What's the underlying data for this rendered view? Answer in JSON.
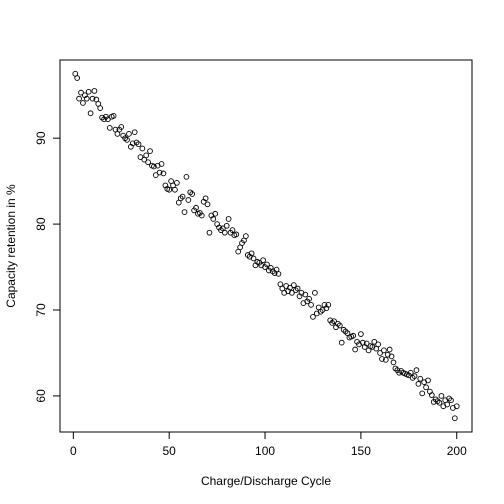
{
  "chart_data": {
    "type": "scatter",
    "xlabel": "Charge/Discharge Cycle",
    "ylabel": "Capacity retention in %",
    "x": [
      1,
      2,
      3,
      4,
      5,
      6,
      7,
      8,
      9,
      10,
      11,
      12,
      13,
      14,
      15,
      16,
      17,
      18,
      19,
      20,
      21,
      22,
      23,
      24,
      25,
      26,
      27,
      28,
      29,
      30,
      31,
      32,
      33,
      34,
      35,
      36,
      37,
      38,
      39,
      40,
      41,
      42,
      43,
      44,
      45,
      46,
      47,
      48,
      49,
      50,
      51,
      52,
      53,
      54,
      55,
      56,
      57,
      58,
      59,
      60,
      61,
      62,
      63,
      64,
      65,
      66,
      67,
      68,
      69,
      70,
      71,
      72,
      73,
      74,
      75,
      76,
      77,
      78,
      79,
      80,
      81,
      82,
      83,
      84,
      85,
      86,
      87,
      88,
      89,
      90,
      91,
      92,
      93,
      94,
      95,
      96,
      97,
      98,
      99,
      100,
      101,
      102,
      103,
      104,
      105,
      106,
      107,
      108,
      109,
      110,
      111,
      112,
      113,
      114,
      115,
      116,
      117,
      118,
      119,
      120,
      121,
      122,
      123,
      124,
      125,
      126,
      127,
      128,
      129,
      130,
      131,
      132,
      133,
      134,
      135,
      136,
      137,
      138,
      139,
      140,
      141,
      142,
      143,
      144,
      145,
      146,
      147,
      148,
      149,
      150,
      151,
      152,
      153,
      154,
      155,
      156,
      157,
      158,
      159,
      160,
      161,
      162,
      163,
      164,
      165,
      166,
      167,
      168,
      169,
      170,
      171,
      172,
      173,
      174,
      175,
      176,
      177,
      178,
      179,
      180,
      181,
      182,
      183,
      184,
      185,
      186,
      187,
      188,
      189,
      190,
      191,
      192,
      193,
      194,
      195,
      196,
      197,
      198,
      199,
      200
    ],
    "values": [
      97.5,
      97.0,
      94.6,
      95.3,
      94.1,
      95.0,
      94.6,
      95.4,
      92.9,
      94.6,
      95.5,
      94.5,
      94.0,
      93.5,
      92.4,
      92.2,
      92.5,
      92.2,
      91.2,
      92.5,
      92.6,
      91.0,
      90.5,
      91.0,
      91.3,
      90.3,
      90.0,
      89.8,
      90.5,
      89.0,
      89.4,
      90.7,
      89.5,
      89.3,
      87.8,
      88.8,
      87.5,
      88.0,
      87.2,
      88.5,
      86.8,
      86.7,
      85.7,
      86.8,
      86.0,
      87.0,
      85.9,
      84.5,
      84.1,
      84.0,
      85.0,
      84.5,
      84.0,
      84.8,
      82.5,
      83.0,
      83.2,
      81.4,
      85.5,
      82.8,
      83.7,
      83.5,
      81.6,
      81.9,
      81.2,
      81.3,
      81.0,
      82.6,
      83.0,
      82.3,
      79.0,
      81.0,
      80.6,
      81.2,
      80.0,
      79.6,
      79.3,
      79.5,
      79.0,
      79.8,
      80.6,
      79.0,
      79.3,
      78.7,
      78.8,
      76.8,
      77.3,
      77.8,
      78.1,
      78.6,
      76.4,
      76.2,
      76.6,
      76.0,
      75.2,
      75.6,
      75.5,
      75.2,
      75.8,
      75.0,
      75.3,
      74.6,
      74.9,
      74.5,
      74.3,
      74.7,
      74.2,
      73.0,
      72.5,
      72.0,
      72.8,
      72.2,
      72.6,
      72.0,
      72.9,
      72.3,
      72.5,
      71.6,
      72.0,
      70.8,
      71.8,
      71.0,
      71.3,
      70.6,
      69.2,
      72.0,
      69.6,
      70.3,
      69.8,
      70.0,
      70.6,
      70.2,
      70.6,
      68.8,
      68.5,
      68.7,
      68.0,
      68.4,
      68.2,
      66.2,
      67.7,
      67.5,
      67.3,
      66.8,
      66.9,
      67.0,
      65.4,
      66.3,
      66.0,
      67.2,
      66.2,
      65.7,
      66.1,
      65.3,
      65.8,
      65.7,
      66.3,
      65.5,
      66.0,
      65.0,
      64.3,
      65.3,
      64.2,
      64.8,
      65.4,
      64.6,
      63.9,
      63.2,
      63.0,
      62.7,
      62.9,
      62.7,
      62.6,
      62.5,
      62.4,
      62.7,
      62.1,
      62.3,
      63.0,
      61.4,
      62.0,
      60.3,
      61.6,
      61.0,
      61.8,
      60.5,
      60.1,
      59.3,
      59.6,
      59.4,
      59.2,
      60.0,
      58.8,
      59.5,
      59.0,
      59.7,
      59.5,
      58.6,
      57.4,
      58.8
    ],
    "color": "#000000",
    "xlim": [
      -6.96,
      207.96
    ],
    "xticks": [
      0,
      50,
      100,
      150,
      200
    ],
    "ylim": [
      55.8,
      99.1
    ],
    "yticks": [
      60,
      70,
      80,
      90
    ]
  }
}
